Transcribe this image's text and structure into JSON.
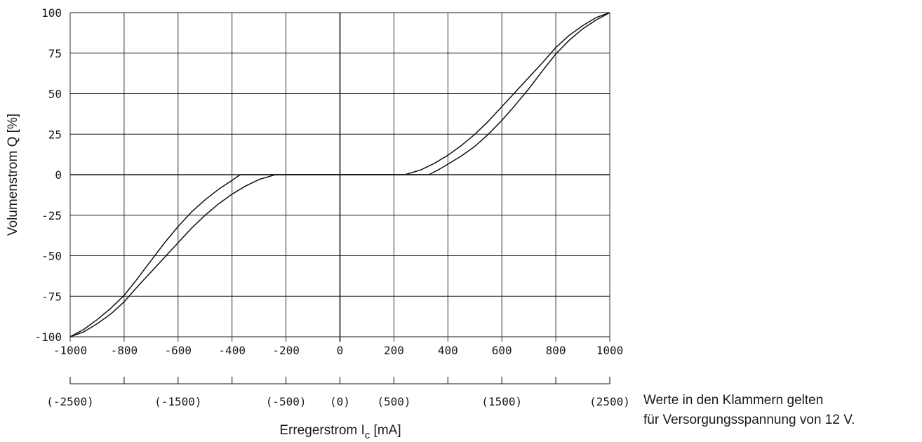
{
  "chart_data": {
    "type": "line",
    "xlabel_main": "Erregerstrom I",
    "xlabel_sub": "c",
    "xlabel_unit": " [mA]",
    "ylabel": "Volumenstrom Q [%]",
    "xlim": [
      -1000,
      1000
    ],
    "ylim": [
      -100,
      100
    ],
    "x_ticks": [
      "-1000",
      "-800",
      "-600",
      "-400",
      "-200",
      "0",
      "200",
      "400",
      "600",
      "800",
      "1000"
    ],
    "y_ticks": [
      "100",
      "75",
      "50",
      "25",
      "0",
      "-25",
      "-50",
      "-75",
      "-100"
    ],
    "x2_ticks": [
      {
        "x": -1000,
        "label": "(-2500)"
      },
      {
        "x": -800,
        "label": ""
      },
      {
        "x": -600,
        "label": "(-1500)"
      },
      {
        "x": -400,
        "label": ""
      },
      {
        "x": -200,
        "label": "(-500)"
      },
      {
        "x": 0,
        "label": "(0)"
      },
      {
        "x": 200,
        "label": "(500)"
      },
      {
        "x": 400,
        "label": ""
      },
      {
        "x": 600,
        "label": "(1500)"
      },
      {
        "x": 800,
        "label": ""
      },
      {
        "x": 1000,
        "label": "(2500)"
      }
    ],
    "note_line1": "Werte in den Klammern gelten",
    "note_line2": "für Versorgungsspannung von 12 V.",
    "grid": true,
    "series": [
      {
        "values": [
          [
            -1000,
            -100
          ],
          [
            -950,
            -95.5
          ],
          [
            -900,
            -89.5
          ],
          [
            -850,
            -82.5
          ],
          [
            -800,
            -74.5
          ],
          [
            -750,
            -64
          ],
          [
            -700,
            -53
          ],
          [
            -650,
            -42
          ],
          [
            -600,
            -32
          ],
          [
            -550,
            -23
          ],
          [
            -500,
            -15.5
          ],
          [
            -450,
            -9
          ],
          [
            -400,
            -3.5
          ],
          [
            -370,
            0
          ],
          [
            -240,
            0
          ],
          [
            0,
            0
          ],
          [
            240,
            0
          ],
          [
            300,
            3
          ],
          [
            350,
            7
          ],
          [
            400,
            12
          ],
          [
            450,
            18
          ],
          [
            500,
            25
          ],
          [
            550,
            33
          ],
          [
            600,
            42
          ],
          [
            650,
            51
          ],
          [
            700,
            60
          ],
          [
            750,
            69
          ],
          [
            800,
            78.5
          ],
          [
            850,
            86
          ],
          [
            900,
            92
          ],
          [
            950,
            97
          ],
          [
            1000,
            100
          ]
        ]
      },
      {
        "values": [
          [
            -1000,
            -100
          ],
          [
            -950,
            -97
          ],
          [
            -900,
            -92
          ],
          [
            -850,
            -86
          ],
          [
            -800,
            -78.5
          ],
          [
            -750,
            -69
          ],
          [
            -700,
            -60
          ],
          [
            -650,
            -51
          ],
          [
            -600,
            -42
          ],
          [
            -550,
            -33
          ],
          [
            -500,
            -25
          ],
          [
            -450,
            -18
          ],
          [
            -400,
            -12
          ],
          [
            -350,
            -7
          ],
          [
            -300,
            -3
          ],
          [
            -240,
            0
          ],
          [
            0,
            0
          ],
          [
            330,
            0
          ],
          [
            370,
            3.5
          ],
          [
            400,
            6.5
          ],
          [
            450,
            11.5
          ],
          [
            500,
            17.5
          ],
          [
            550,
            25
          ],
          [
            600,
            33.5
          ],
          [
            650,
            43
          ],
          [
            700,
            53
          ],
          [
            750,
            64
          ],
          [
            800,
            74.5
          ],
          [
            850,
            83
          ],
          [
            900,
            90
          ],
          [
            950,
            95.5
          ],
          [
            1000,
            100
          ]
        ]
      }
    ]
  }
}
